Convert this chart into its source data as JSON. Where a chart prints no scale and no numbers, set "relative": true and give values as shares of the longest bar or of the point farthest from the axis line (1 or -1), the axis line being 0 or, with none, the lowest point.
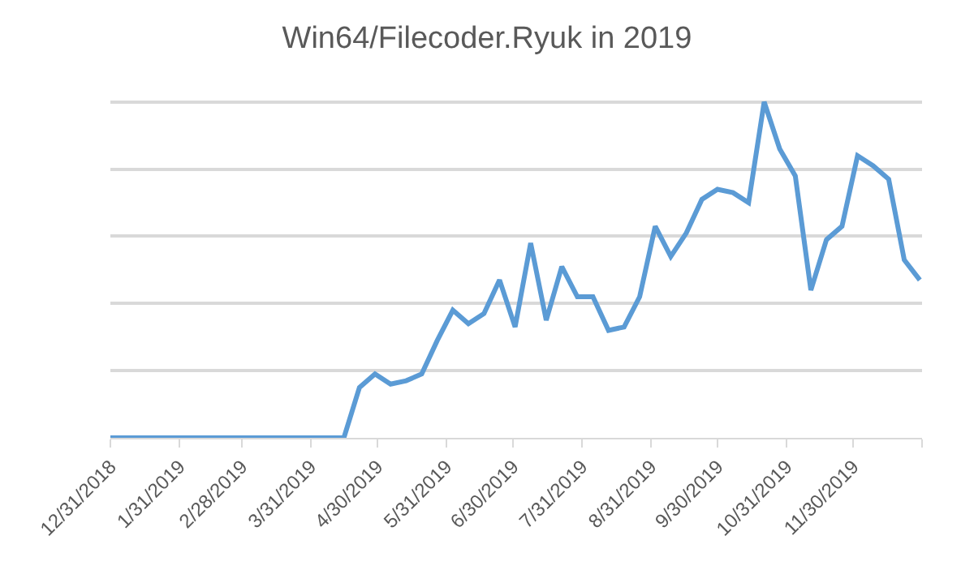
{
  "chart_data": {
    "type": "line",
    "title": "Win64/Filecoder.Ryuk in 2019",
    "relative": true,
    "grid": "y",
    "legend": false,
    "marker": "none",
    "line_style": "solid",
    "x": [
      "2018-12-31",
      "2019-01-07",
      "2019-01-14",
      "2019-01-21",
      "2019-01-28",
      "2019-02-04",
      "2019-02-11",
      "2019-02-18",
      "2019-02-25",
      "2019-03-04",
      "2019-03-11",
      "2019-03-18",
      "2019-03-25",
      "2019-04-01",
      "2019-04-08",
      "2019-04-15",
      "2019-04-22",
      "2019-04-29",
      "2019-05-06",
      "2019-05-13",
      "2019-05-20",
      "2019-05-27",
      "2019-06-03",
      "2019-06-10",
      "2019-06-17",
      "2019-06-24",
      "2019-07-01",
      "2019-07-08",
      "2019-07-15",
      "2019-07-22",
      "2019-07-29",
      "2019-08-05",
      "2019-08-12",
      "2019-08-19",
      "2019-08-26",
      "2019-09-02",
      "2019-09-09",
      "2019-09-16",
      "2019-09-23",
      "2019-09-30",
      "2019-10-07",
      "2019-10-14",
      "2019-10-21",
      "2019-10-28",
      "2019-11-04",
      "2019-11-11",
      "2019-11-18",
      "2019-11-25",
      "2019-12-02",
      "2019-12-09",
      "2019-12-16",
      "2019-12-23",
      "2019-12-30"
    ],
    "xlim": [
      "2018-12-31",
      "2019-12-31"
    ],
    "xticks": [
      {
        "value": "2018-12-31",
        "label": "12/31/2018"
      },
      {
        "value": "2019-01-31",
        "label": "1/31/2019"
      },
      {
        "value": "2019-02-28",
        "label": "2/28/2019"
      },
      {
        "value": "2019-03-31",
        "label": "3/31/2019"
      },
      {
        "value": "2019-04-30",
        "label": "4/30/2019"
      },
      {
        "value": "2019-05-31",
        "label": "5/31/2019"
      },
      {
        "value": "2019-06-30",
        "label": "6/30/2019"
      },
      {
        "value": "2019-07-31",
        "label": "7/31/2019"
      },
      {
        "value": "2019-08-31",
        "label": "8/31/2019"
      },
      {
        "value": "2019-09-30",
        "label": "9/30/2019"
      },
      {
        "value": "2019-10-31",
        "label": "10/31/2019"
      },
      {
        "value": "2019-11-30",
        "label": "11/30/2019"
      },
      {
        "value": "2019-12-31",
        "label": null
      }
    ],
    "series": [
      {
        "color": "#5b9bd5",
        "values": [
          0,
          0,
          0,
          0,
          0,
          0,
          0,
          0,
          0,
          0,
          0,
          0,
          0,
          0,
          0,
          0,
          0.15,
          0.19,
          0.16,
          0.17,
          0.19,
          0.29,
          0.38,
          0.34,
          0.37,
          0.47,
          0.33,
          0.58,
          0.35,
          0.51,
          0.42,
          0.42,
          0.32,
          0.33,
          0.42,
          0.63,
          0.54,
          0.61,
          0.71,
          0.74,
          0.73,
          0.7,
          1,
          0.86,
          0.78,
          0.44,
          0.59,
          0.63,
          0.84,
          0.81,
          0.77,
          0.53,
          0.47
        ]
      }
    ]
  }
}
